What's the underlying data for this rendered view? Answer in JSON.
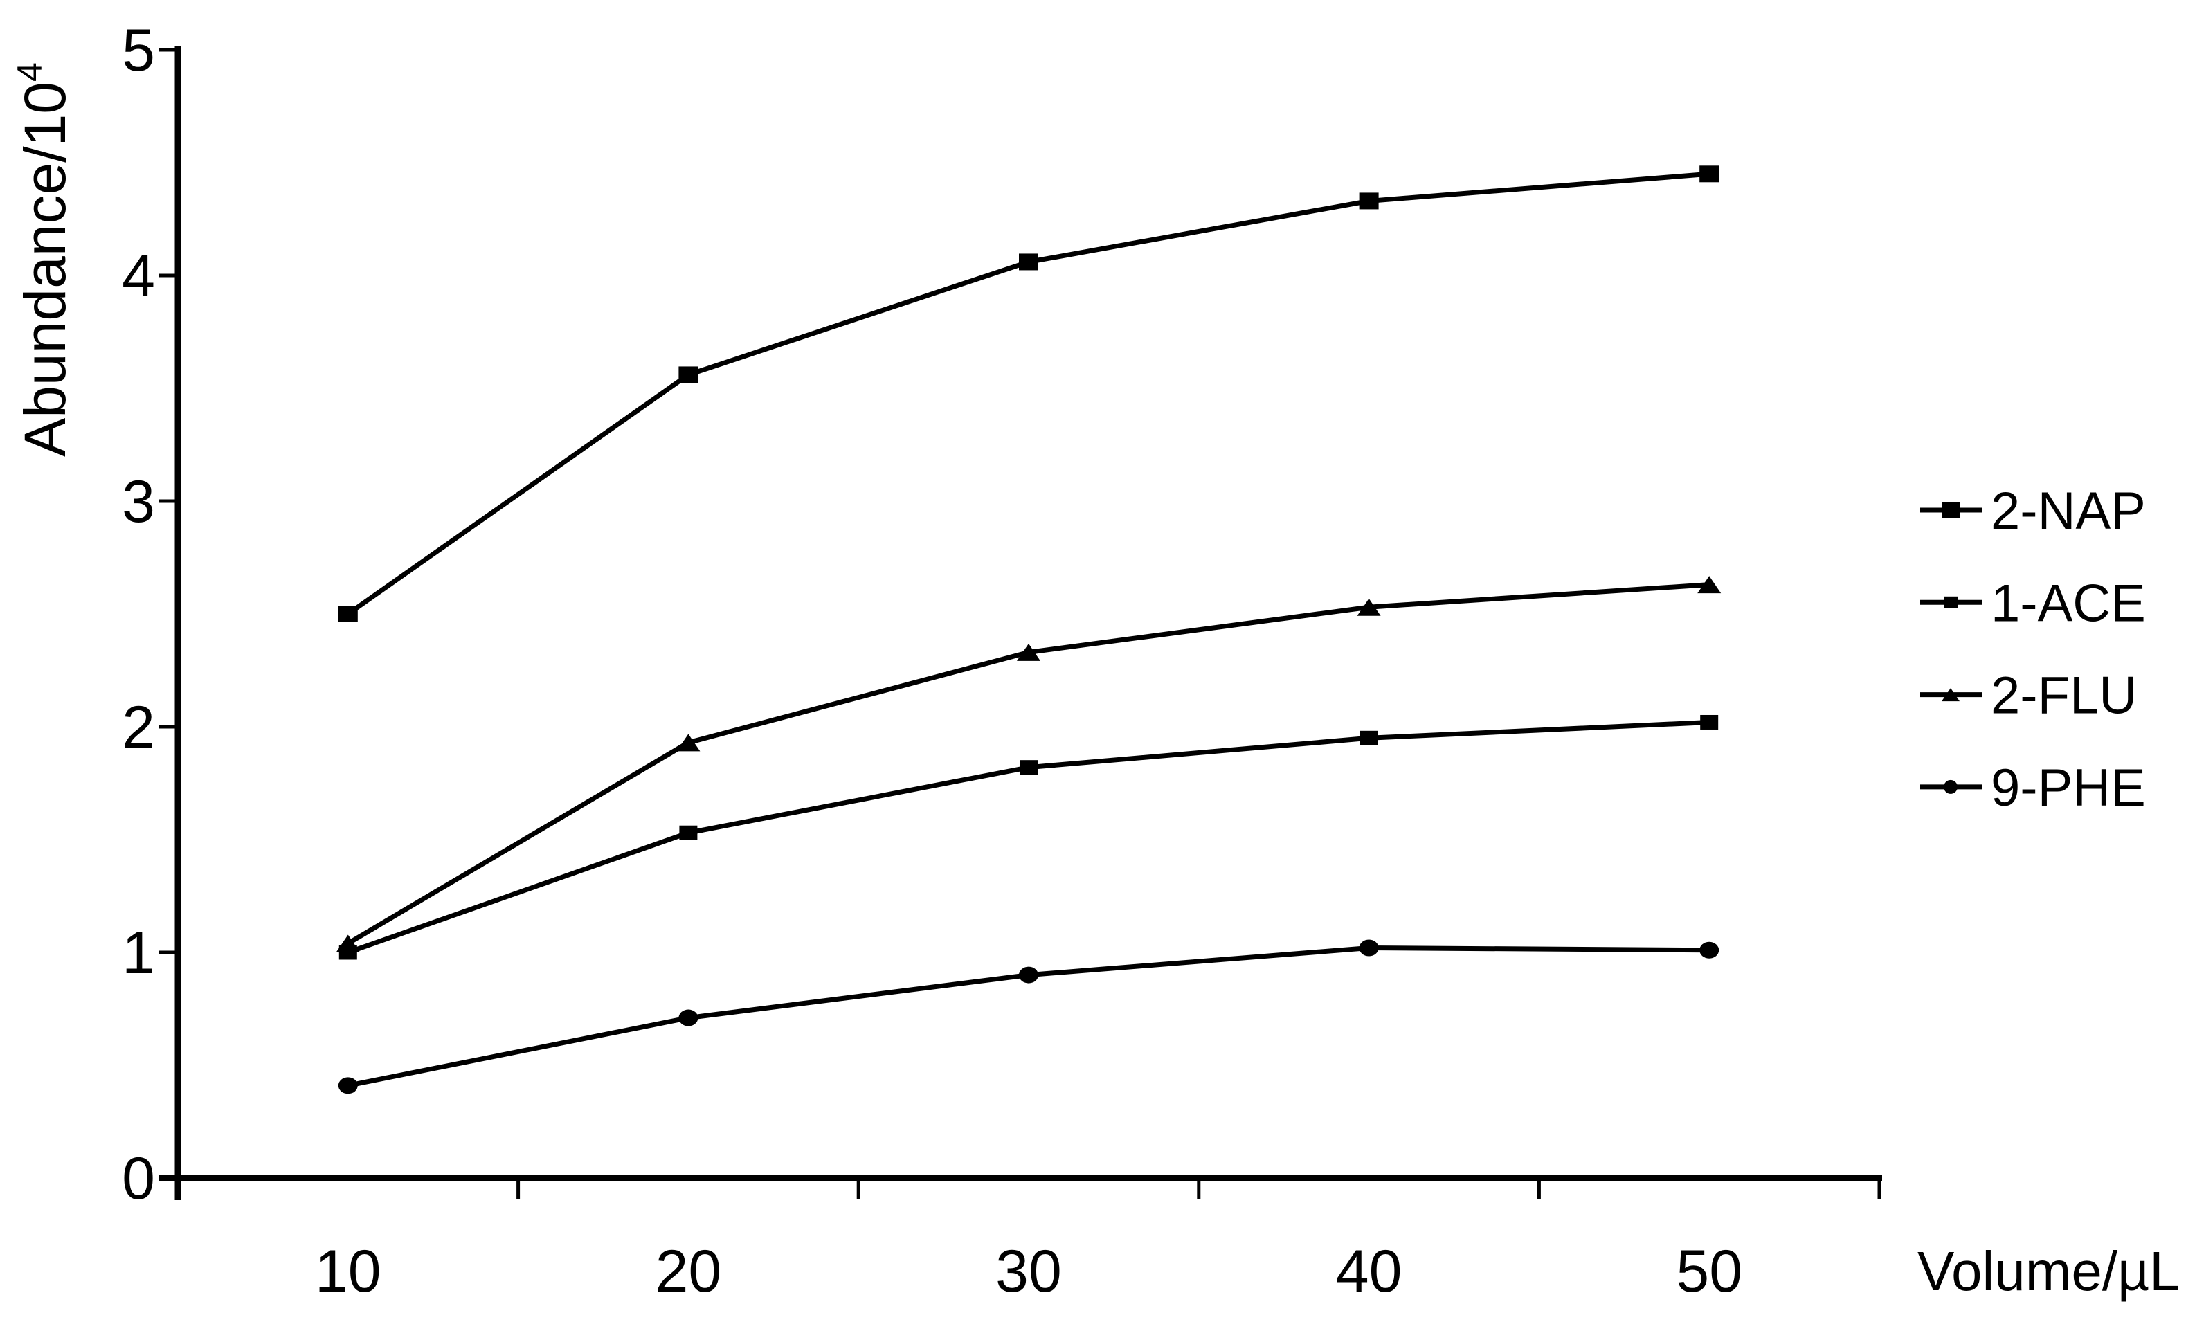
{
  "chart_data": {
    "type": "line",
    "title": "",
    "xlabel": "Volume/µL",
    "ylabel": "Abundance/10",
    "ylabel_superscript": "4",
    "x": [
      10,
      20,
      30,
      40,
      50
    ],
    "x_tick_labels": [
      "10",
      "20",
      "30",
      "40",
      "50"
    ],
    "ylim": [
      0,
      5
    ],
    "yticks": [
      0,
      1,
      2,
      3,
      4,
      5
    ],
    "grid": false,
    "legend_position": "right",
    "axis_color": "#000000",
    "line_color": "#000000",
    "background_color": "#ffffff",
    "series": [
      {
        "name": "2-NAP",
        "marker": "square-large",
        "values": [
          2.5,
          3.56,
          4.06,
          4.33,
          4.45
        ]
      },
      {
        "name": "1-ACE",
        "marker": "square",
        "values": [
          1.0,
          1.53,
          1.82,
          1.95,
          2.02
        ]
      },
      {
        "name": "2-FLU",
        "marker": "triangle",
        "values": [
          1.04,
          1.93,
          2.33,
          2.53,
          2.63
        ]
      },
      {
        "name": "9-PHE",
        "marker": "circle",
        "values": [
          0.41,
          0.71,
          0.9,
          1.02,
          1.01
        ]
      }
    ]
  }
}
